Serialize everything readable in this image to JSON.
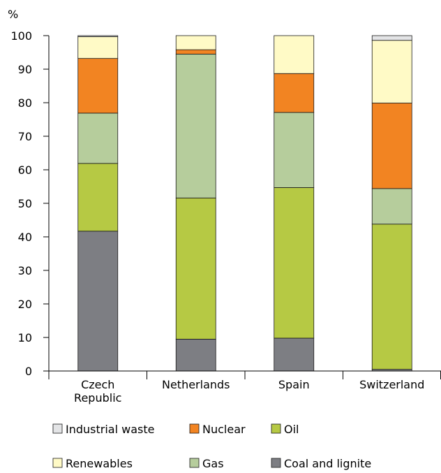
{
  "chart_data": {
    "type": "bar",
    "stacked": true,
    "ylabel": "%",
    "ylim": [
      0,
      100
    ],
    "yticks": [
      0,
      10,
      20,
      30,
      40,
      50,
      60,
      70,
      80,
      90,
      100
    ],
    "categories": [
      [
        "Czech",
        "Republic"
      ],
      [
        "Netherlands"
      ],
      [
        "Spain"
      ],
      [
        "Switzerland"
      ]
    ],
    "series": [
      {
        "name": "Coal and lignite",
        "color": "#7d7e83",
        "values": [
          41.7,
          9.5,
          9.8,
          0.5
        ]
      },
      {
        "name": "Oil",
        "color": "#b6c944",
        "values": [
          20.2,
          42.1,
          44.9,
          43.3
        ]
      },
      {
        "name": "Gas",
        "color": "#b6cd9c",
        "values": [
          15.0,
          42.9,
          22.4,
          10.6
        ]
      },
      {
        "name": "Nuclear",
        "color": "#f28422",
        "values": [
          16.3,
          1.3,
          11.6,
          25.5
        ]
      },
      {
        "name": "Renewables",
        "color": "#fffac6",
        "values": [
          6.5,
          4.2,
          11.3,
          18.7
        ]
      },
      {
        "name": "Industrial waste",
        "color": "#e3e4e6",
        "values": [
          0.3,
          0.0,
          0.0,
          1.4
        ]
      }
    ],
    "legend": {
      "placement": "bottom",
      "rows": [
        [
          "Industrial waste",
          "Nuclear",
          "Oil"
        ],
        [
          "Renewables",
          "Gas",
          "Coal and lignite"
        ]
      ]
    },
    "grid": false
  }
}
